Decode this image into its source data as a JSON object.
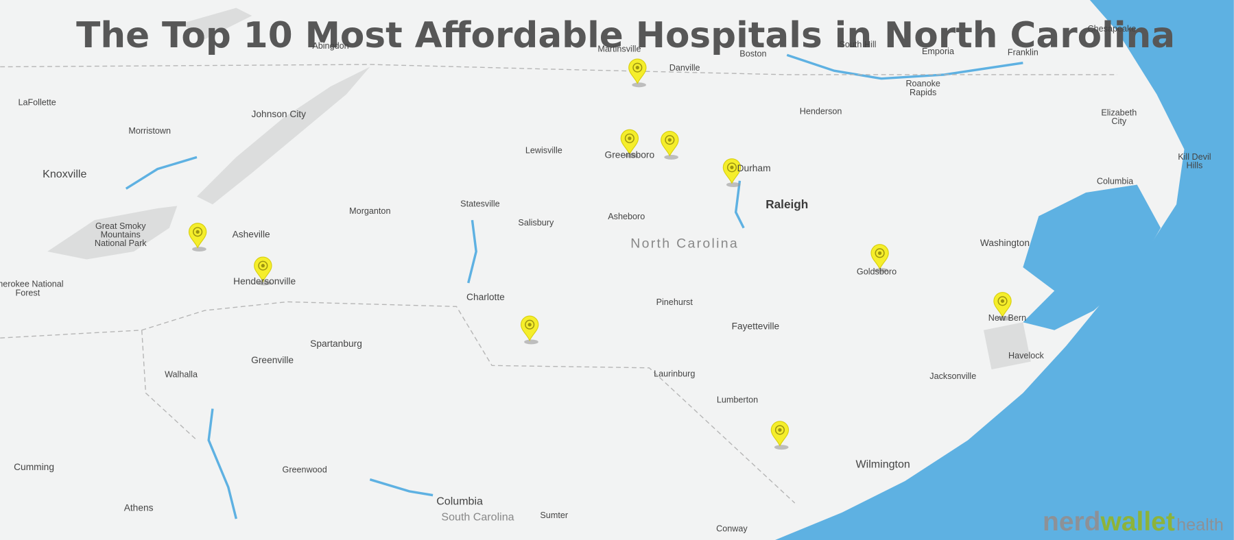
{
  "title": "The Top 10 Most Affordable Hospitals in North Carolina",
  "places": [
    [
      "Abingdon"
    ],
    [
      "Martinsville"
    ],
    [
      "Danville"
    ],
    [
      "Boston"
    ],
    [
      "South Hill"
    ],
    [
      "Emporia"
    ],
    [
      "Franklin"
    ],
    [
      "Chesapeake"
    ],
    [
      "LaFollette"
    ],
    [
      "Johnson City"
    ],
    [
      "Morristown"
    ],
    [
      "Henderson"
    ],
    [
      "Roanoke",
      "Rapids"
    ],
    [
      "Elizabeth",
      "City"
    ],
    [
      "Kill Devil",
      "Hills"
    ],
    [
      "Knoxville"
    ],
    [
      "Lewisville"
    ],
    [
      "Greensboro"
    ],
    [
      "Durham"
    ],
    [
      "Columbia"
    ],
    [
      "Raleigh"
    ],
    [
      "Great Smoky",
      "Mountains",
      "National Park"
    ],
    [
      "Morganton"
    ],
    [
      "Statesville"
    ],
    [
      "Salisbury"
    ],
    [
      "Asheboro"
    ],
    [
      "Asheville"
    ],
    [
      "North Carolina"
    ],
    [
      "Washington"
    ],
    [
      "Goldsboro"
    ],
    [
      "Hendersonville"
    ],
    [
      "Cherokee National",
      "Forest"
    ],
    [
      "Charlotte"
    ],
    [
      "Pinehurst"
    ],
    [
      "New Bern"
    ],
    [
      "Fayetteville"
    ],
    [
      "Spartanburg"
    ],
    [
      "Havelock"
    ],
    [
      "Greenville"
    ],
    [
      "Walhalla"
    ],
    [
      "Laurinburg"
    ],
    [
      "Jacksonville"
    ],
    [
      "Lumberton"
    ],
    [
      "Cumming"
    ],
    [
      "Greenwood"
    ],
    [
      "Wilmington"
    ],
    [
      "Columbia"
    ],
    [
      "South Carolina"
    ],
    [
      "Athens"
    ],
    [
      "Sumter"
    ],
    [
      "Conway"
    ]
  ],
  "logo": {
    "brand_a": "nerd",
    "brand_b": "wallet",
    "suffix": "health"
  }
}
